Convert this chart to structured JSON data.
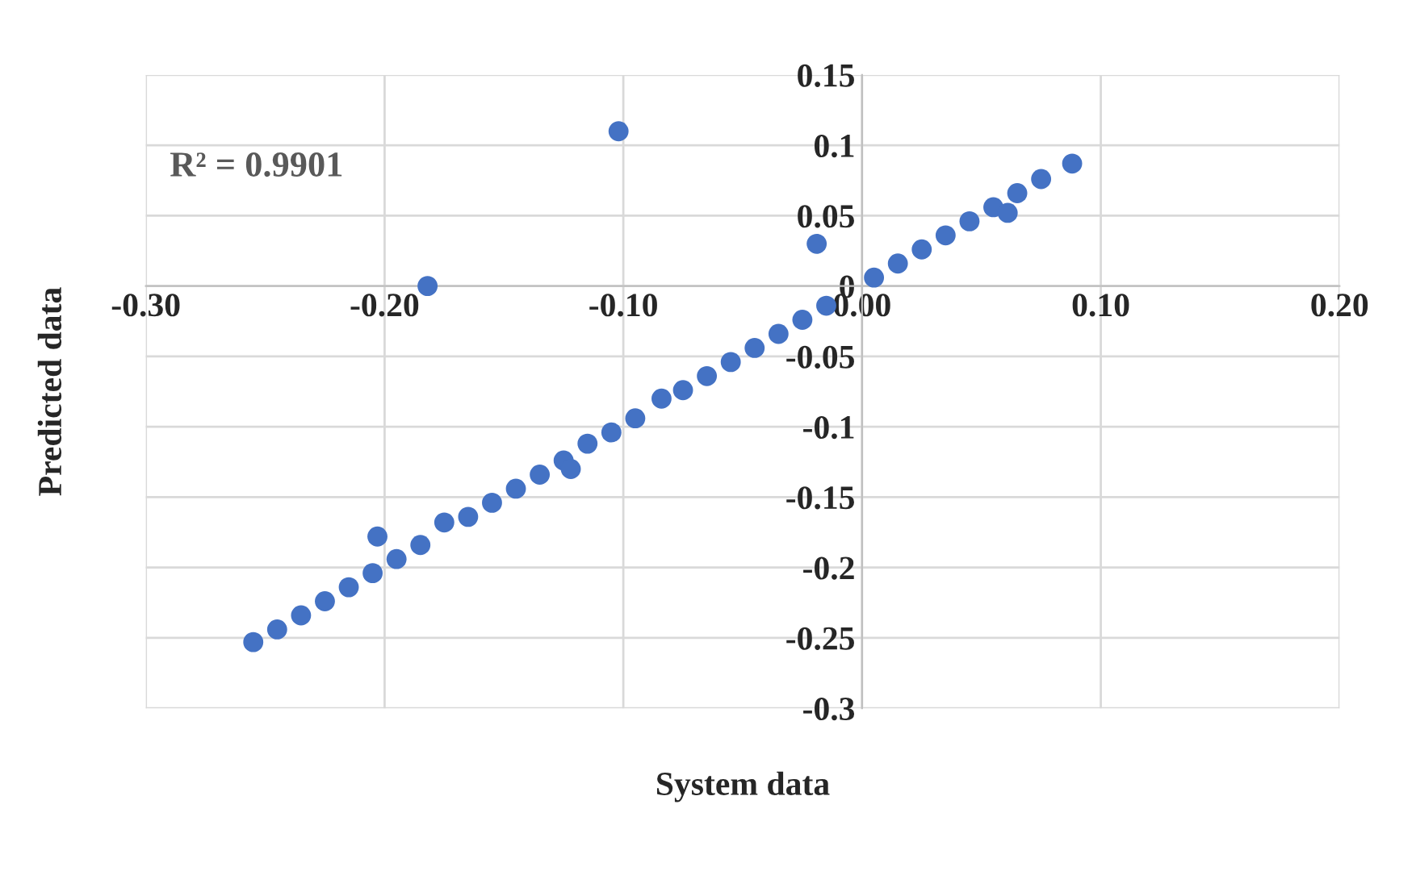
{
  "chart_data": {
    "type": "scatter",
    "xlabel": "System data",
    "ylabel": "Predicted data",
    "annotations": [
      "R² = 0.9901"
    ],
    "series": [
      {
        "color": "#4472c4",
        "marker": "circle",
        "x": [
          -0.255,
          -0.245,
          -0.235,
          -0.225,
          -0.215,
          -0.205,
          -0.195,
          -0.185,
          -0.175,
          -0.165,
          -0.155,
          -0.145,
          -0.135,
          -0.125,
          -0.115,
          -0.105,
          -0.095,
          -0.075,
          -0.065,
          -0.055,
          -0.045,
          -0.035,
          -0.025,
          -0.015,
          0.005,
          0.015,
          0.025,
          0.035,
          0.045,
          0.055,
          0.065,
          0.075,
          0.088,
          -0.102,
          -0.182,
          -0.019,
          -0.203,
          -0.122,
          -0.084,
          0.061
        ],
        "values": [
          -0.253,
          -0.244,
          -0.234,
          -0.224,
          -0.214,
          -0.204,
          -0.194,
          -0.184,
          -0.168,
          -0.164,
          -0.154,
          -0.144,
          -0.134,
          -0.124,
          -0.112,
          -0.104,
          -0.094,
          -0.074,
          -0.064,
          -0.054,
          -0.044,
          -0.034,
          -0.024,
          -0.014,
          0.006,
          0.016,
          0.026,
          0.036,
          0.046,
          0.056,
          0.066,
          0.076,
          0.087,
          0.11,
          0,
          0.03,
          -0.178,
          -0.13,
          -0.08,
          0.052
        ]
      }
    ],
    "xlim": [
      -0.3,
      0.2
    ],
    "ylim": [
      -0.3,
      0.15
    ],
    "xticks": [
      {
        "value": -0.3,
        "label": "-0.30"
      },
      {
        "value": -0.2,
        "label": "-0.20"
      },
      {
        "value": -0.1,
        "label": "-0.10"
      },
      {
        "value": 0,
        "label": "0.00"
      },
      {
        "value": 0.1,
        "label": "0.10"
      },
      {
        "value": 0.2,
        "label": "0.20"
      }
    ],
    "yticks": [
      -0.3,
      -0.25,
      -0.2,
      -0.15,
      -0.1,
      -0.05,
      0,
      0.05,
      0.1,
      0.15
    ],
    "grid": true,
    "legend": false
  }
}
